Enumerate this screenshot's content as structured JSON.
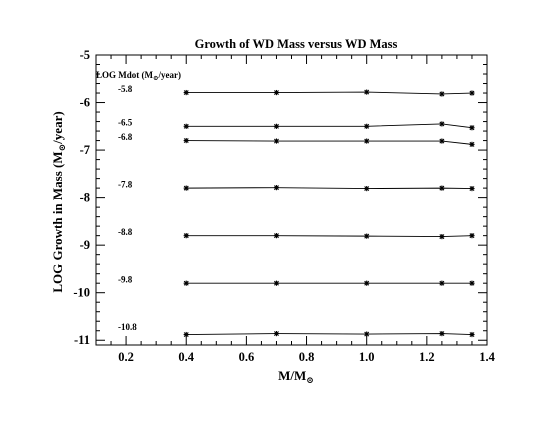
{
  "chart_data": {
    "type": "line",
    "title": "Growth of WD Mass versus WD Mass",
    "xlabel": "M/M",
    "xlabel_sub": "⊙",
    "ylabel": "LOG Growth in Mass  (M",
    "ylabel_sub": "⊙",
    "ylabel_tail": "/year)",
    "xlim": [
      0.1,
      1.4
    ],
    "ylim": [
      -11.1,
      -5.0
    ],
    "xticks": [
      0.2,
      0.4,
      0.6,
      0.8,
      1.0,
      1.2,
      1.4
    ],
    "xtick_labels": [
      "0.2",
      "0.4",
      "0.6",
      "0.8",
      "1.0",
      "1.2",
      "1.4"
    ],
    "yticks": [
      -5,
      -6,
      -7,
      -8,
      -9,
      -10,
      -11
    ],
    "ytick_labels": [
      "-5",
      "-6",
      "-7",
      "-8",
      "-9",
      "-10",
      "-11"
    ],
    "legend_header": "LOG Mdot (M",
    "legend_header_sub": "⊙",
    "legend_header_tail": "/year)",
    "x": [
      0.4,
      0.7,
      1.0,
      1.25,
      1.35
    ],
    "series": [
      {
        "name": "-5.8",
        "label_y": -5.72,
        "values": [
          -5.79,
          -5.79,
          -5.78,
          -5.82,
          -5.8
        ]
      },
      {
        "name": "-6.5",
        "label_y": -6.42,
        "values": [
          -6.5,
          -6.5,
          -6.5,
          -6.45,
          -6.53
        ]
      },
      {
        "name": "-6.8",
        "label_y": -6.73,
        "values": [
          -6.8,
          -6.81,
          -6.81,
          -6.81,
          -6.88
        ]
      },
      {
        "name": "-7.8",
        "label_y": -7.72,
        "values": [
          -7.8,
          -7.79,
          -7.81,
          -7.8,
          -7.81
        ]
      },
      {
        "name": "-8.8",
        "label_y": -8.72,
        "values": [
          -8.8,
          -8.8,
          -8.81,
          -8.82,
          -8.8
        ]
      },
      {
        "name": "-9.8",
        "label_y": -9.72,
        "values": [
          -9.8,
          -9.8,
          -9.8,
          -9.8,
          -9.8
        ]
      },
      {
        "name": "-10.8",
        "label_y": -10.72,
        "values": [
          -10.88,
          -10.86,
          -10.87,
          -10.86,
          -10.88
        ]
      }
    ]
  }
}
